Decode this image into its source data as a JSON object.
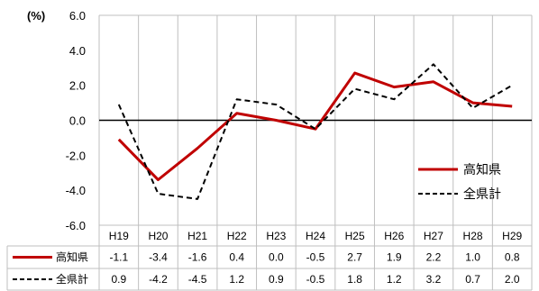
{
  "chart_data": {
    "type": "line",
    "unit_label": "(%)",
    "categories": [
      "H19",
      "H20",
      "H21",
      "H22",
      "H23",
      "H24",
      "H25",
      "H26",
      "H27",
      "H28",
      "H29"
    ],
    "ylim": [
      -6.0,
      6.0
    ],
    "yticks": [
      "6.0",
      "4.0",
      "2.0",
      "0.0",
      "-2.0",
      "-4.0",
      "-6.0"
    ],
    "ytick_values": [
      6,
      4,
      2,
      0,
      -2,
      -4,
      -6
    ],
    "grid": "vertical",
    "legend": "bottom-right",
    "series": [
      {
        "name": "高知県",
        "color": "#c00000",
        "style": "solid",
        "values": [
          -1.1,
          -3.4,
          -1.6,
          0.4,
          0.0,
          -0.5,
          2.7,
          1.9,
          2.2,
          1.0,
          0.8
        ],
        "labels": [
          "-1.1",
          "-3.4",
          "-1.6",
          "0.4",
          "0.0",
          "-0.5",
          "2.7",
          "1.9",
          "2.2",
          "1.0",
          "0.8"
        ]
      },
      {
        "name": "全県計",
        "color": "#000000",
        "style": "dashed",
        "values": [
          0.9,
          -4.2,
          -4.5,
          1.2,
          0.9,
          -0.5,
          1.8,
          1.2,
          3.2,
          0.7,
          2.0
        ],
        "labels": [
          "0.9",
          "-4.2",
          "-4.5",
          "1.2",
          "0.9",
          "-0.5",
          "1.8",
          "1.2",
          "3.2",
          "0.7",
          "2.0"
        ]
      }
    ]
  }
}
